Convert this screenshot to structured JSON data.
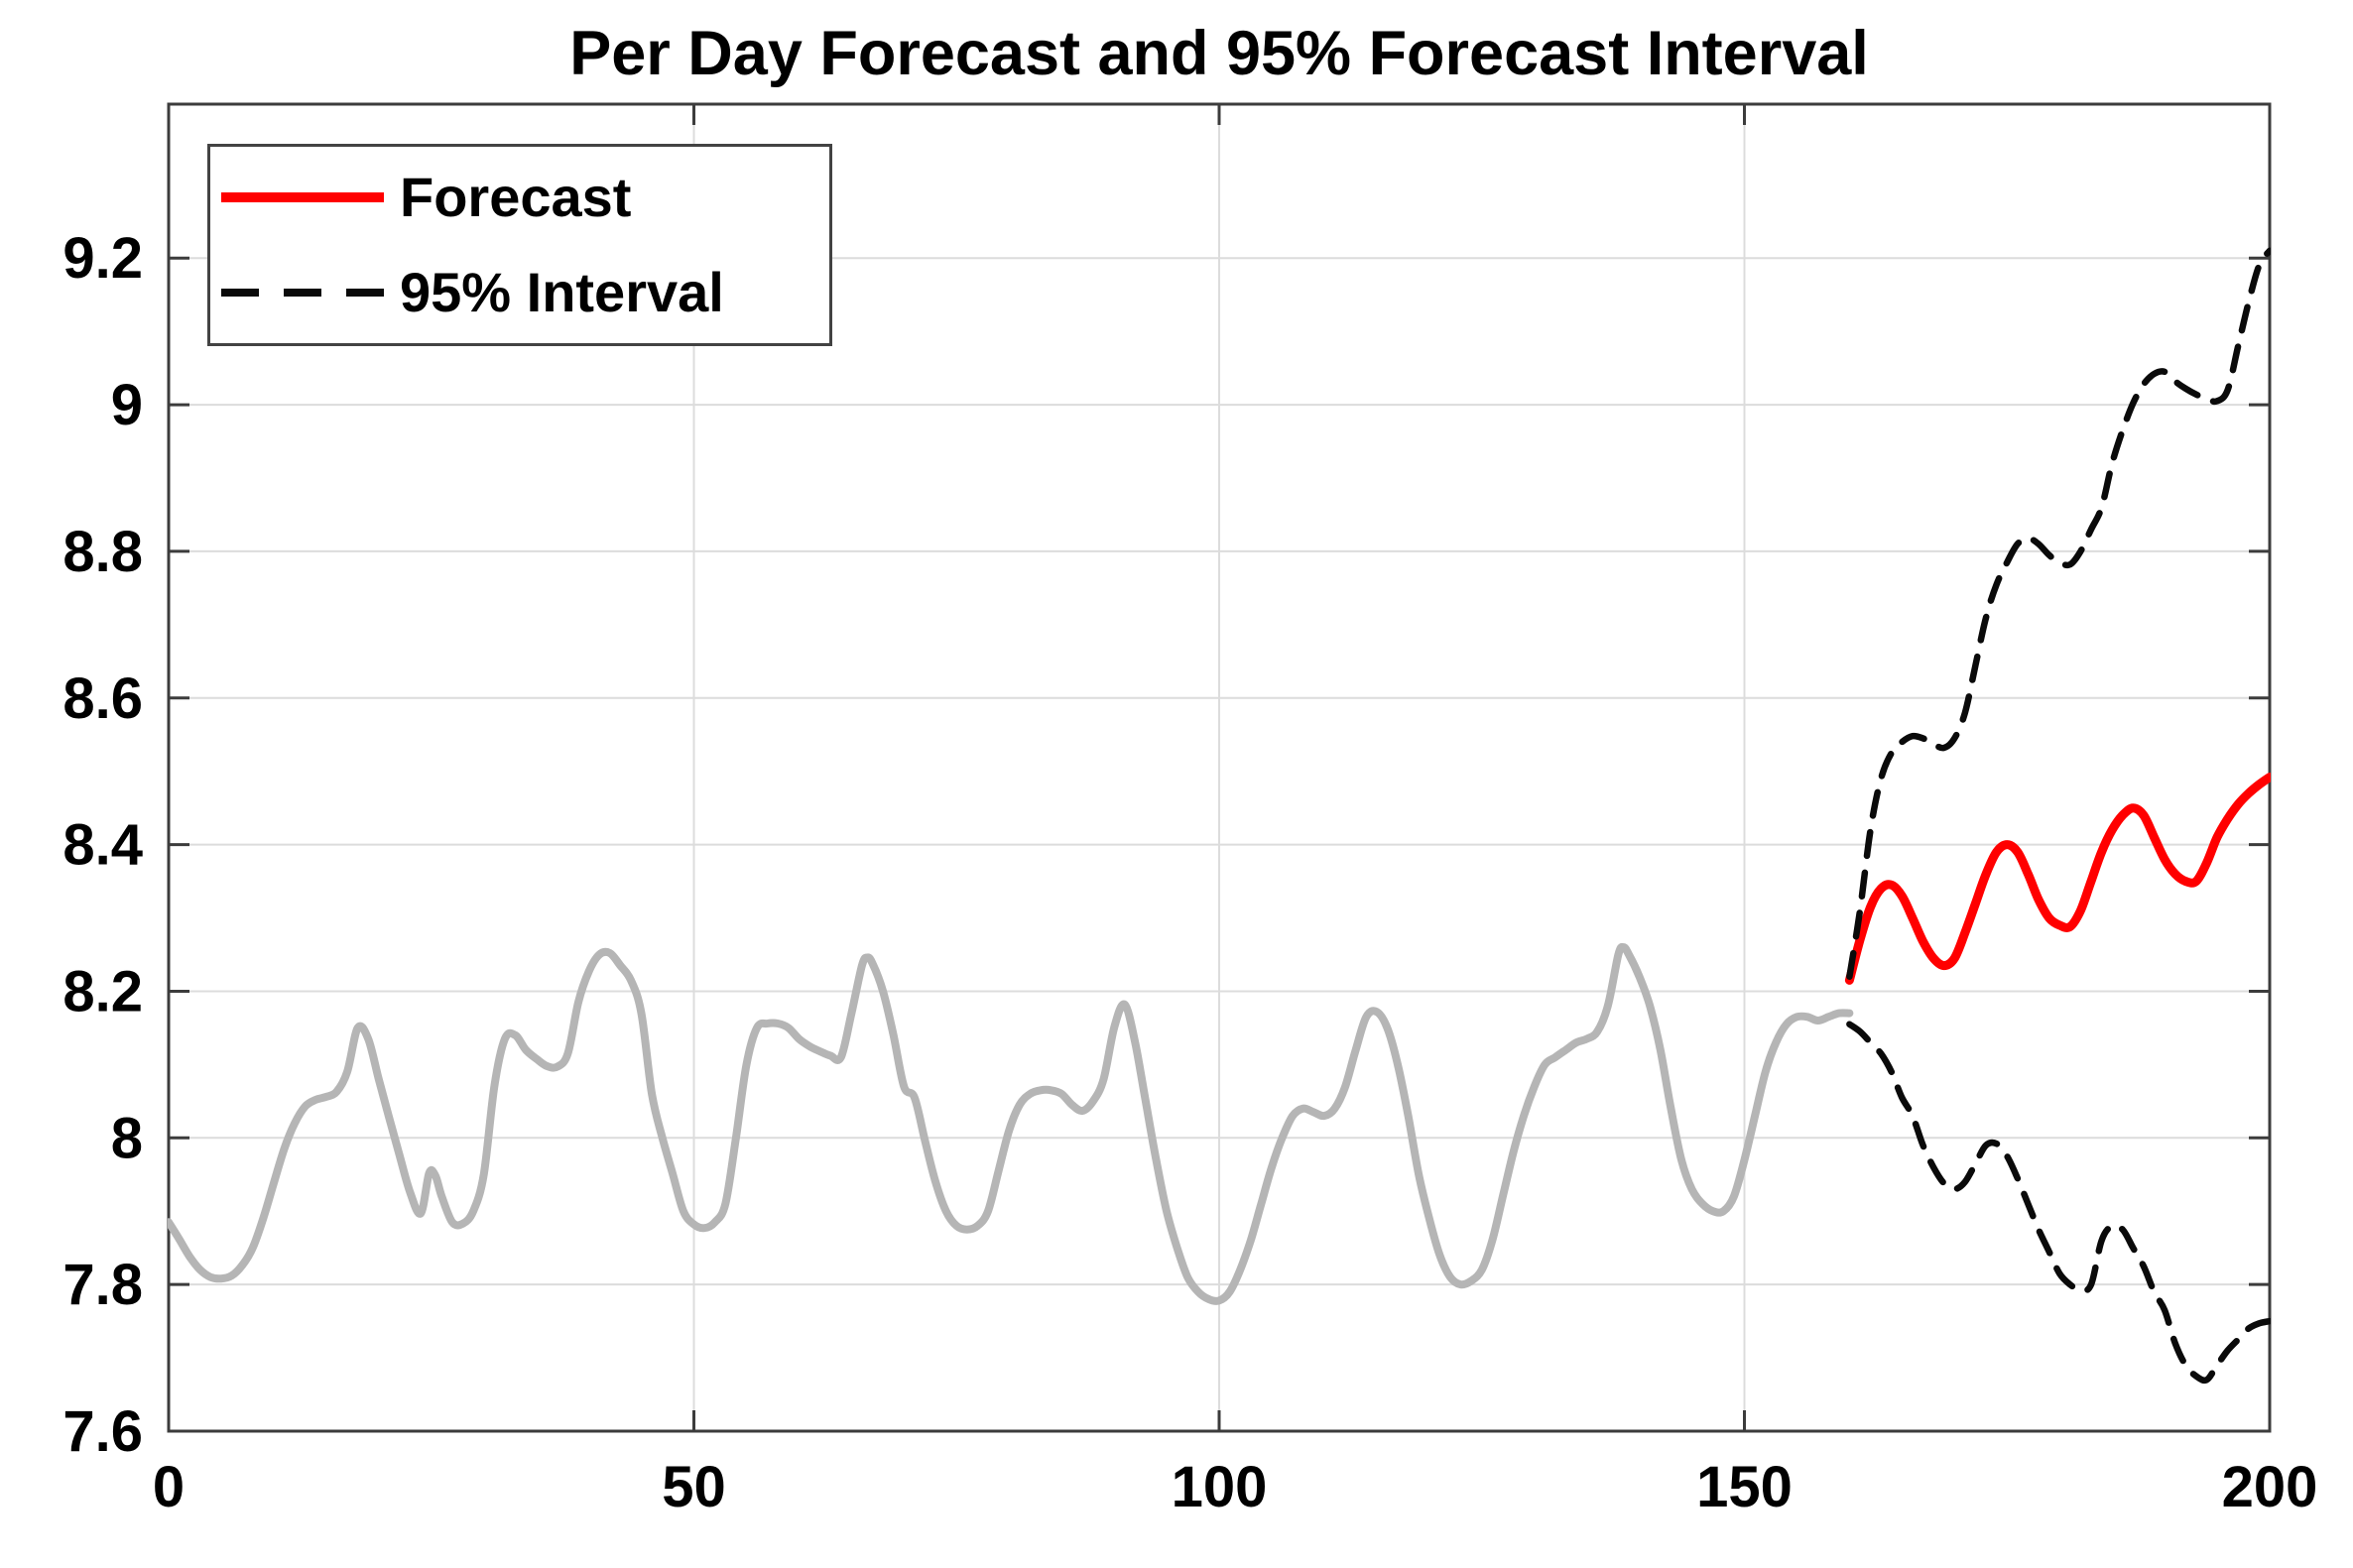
{
  "figure_title": "Per Day Forecast and 95% Forecast Interval",
  "legend": {
    "position": "top-left",
    "items": [
      {
        "label": "Forecast",
        "color": "#ff0000",
        "style": "solid"
      },
      {
        "label": "95% Interval",
        "color": "#0a0a0a",
        "style": "dashed"
      }
    ]
  },
  "axes": {
    "x_tick_labels": [
      "0",
      "50",
      "100",
      "150",
      "200"
    ],
    "y_tick_labels": [
      "7.6",
      "7.8",
      "8",
      "8.2",
      "8.4",
      "8.6",
      "8.8",
      "9",
      "9.2"
    ],
    "box_color": "#3c3c3c",
    "grid_color": "#dcdcdc",
    "label_color": "#000000"
  },
  "chart_data": {
    "type": "line",
    "title": "Per Day Forecast and 95% Forecast Interval",
    "xlabel": "",
    "ylabel": "",
    "xlim": [
      0,
      200
    ],
    "ylim": [
      7.6,
      9.41
    ],
    "x_ticks": [
      0,
      50,
      100,
      150,
      200
    ],
    "y_ticks": [
      7.6,
      7.8,
      8.0,
      8.2,
      8.4,
      8.6,
      8.8,
      9.0,
      9.2
    ],
    "grid": true,
    "legend_position": "top-left",
    "series": [
      {
        "name": "History",
        "color": "#b5b5b5",
        "style": "solid",
        "width": 8,
        "in_legend": false,
        "points": [
          [
            0,
            7.885
          ],
          [
            1,
            7.862
          ],
          [
            2,
            7.838
          ],
          [
            3,
            7.82
          ],
          [
            4,
            7.81
          ],
          [
            5,
            7.808
          ],
          [
            6,
            7.812
          ],
          [
            7,
            7.826
          ],
          [
            8,
            7.85
          ],
          [
            9,
            7.89
          ],
          [
            10,
            7.938
          ],
          [
            11,
            7.985
          ],
          [
            12,
            8.02
          ],
          [
            13,
            8.043
          ],
          [
            14,
            8.052
          ],
          [
            15,
            8.056
          ],
          [
            16,
            8.063
          ],
          [
            17,
            8.09
          ],
          [
            18,
            8.15
          ],
          [
            19,
            8.135
          ],
          [
            20,
            8.08
          ],
          [
            21,
            8.027
          ],
          [
            22,
            7.975
          ],
          [
            23,
            7.925
          ],
          [
            24,
            7.897
          ],
          [
            24.8,
            7.952
          ],
          [
            25.4,
            7.948
          ],
          [
            26,
            7.92
          ],
          [
            27,
            7.885
          ],
          [
            28,
            7.883
          ],
          [
            29,
            7.9
          ],
          [
            30,
            7.95
          ],
          [
            31,
            8.07
          ],
          [
            32,
            8.135
          ],
          [
            33,
            8.14
          ],
          [
            34,
            8.12
          ],
          [
            35,
            8.108
          ],
          [
            36,
            8.098
          ],
          [
            37,
            8.097
          ],
          [
            38,
            8.115
          ],
          [
            39,
            8.185
          ],
          [
            40,
            8.227
          ],
          [
            41,
            8.25
          ],
          [
            42,
            8.252
          ],
          [
            43,
            8.235
          ],
          [
            44,
            8.215
          ],
          [
            45,
            8.17
          ],
          [
            46,
            8.06
          ],
          [
            47,
            8.0
          ],
          [
            48,
            7.95
          ],
          [
            49,
            7.9
          ],
          [
            50,
            7.882
          ],
          [
            51,
            7.877
          ],
          [
            52,
            7.885
          ],
          [
            53,
            7.91
          ],
          [
            54,
            8.0
          ],
          [
            55,
            8.1
          ],
          [
            56,
            8.15
          ],
          [
            57,
            8.156
          ],
          [
            58,
            8.156
          ],
          [
            59,
            8.15
          ],
          [
            60,
            8.135
          ],
          [
            61,
            8.125
          ],
          [
            62,
            8.118
          ],
          [
            63,
            8.112
          ],
          [
            64,
            8.11
          ],
          [
            65,
            8.17
          ],
          [
            66,
            8.235
          ],
          [
            66.5,
            8.246
          ],
          [
            67,
            8.238
          ],
          [
            68,
            8.2
          ],
          [
            69,
            8.14
          ],
          [
            70,
            8.07
          ],
          [
            71,
            8.055
          ],
          [
            72,
            7.996
          ],
          [
            73,
            7.94
          ],
          [
            74,
            7.9
          ],
          [
            75,
            7.88
          ],
          [
            76,
            7.875
          ],
          [
            77,
            7.88
          ],
          [
            78,
            7.9
          ],
          [
            79,
            7.955
          ],
          [
            80,
            8.01
          ],
          [
            81,
            8.045
          ],
          [
            82,
            8.06
          ],
          [
            83,
            8.065
          ],
          [
            84,
            8.065
          ],
          [
            85,
            8.06
          ],
          [
            86,
            8.045
          ],
          [
            87,
            8.037
          ],
          [
            88,
            8.05
          ],
          [
            89,
            8.08
          ],
          [
            90,
            8.15
          ],
          [
            91,
            8.182
          ],
          [
            92,
            8.13
          ],
          [
            93,
            8.05
          ],
          [
            94,
            7.97
          ],
          [
            95,
            7.9
          ],
          [
            96,
            7.85
          ],
          [
            97,
            7.81
          ],
          [
            98,
            7.79
          ],
          [
            99,
            7.78
          ],
          [
            100,
            7.778
          ],
          [
            101,
            7.79
          ],
          [
            102,
            7.82
          ],
          [
            103,
            7.86
          ],
          [
            104,
            7.91
          ],
          [
            105,
            7.96
          ],
          [
            106,
            8.0
          ],
          [
            107,
            8.03
          ],
          [
            108,
            8.04
          ],
          [
            109,
            8.035
          ],
          [
            110,
            8.03
          ],
          [
            111,
            8.04
          ],
          [
            112,
            8.07
          ],
          [
            113,
            8.12
          ],
          [
            114,
            8.165
          ],
          [
            115,
            8.172
          ],
          [
            116,
            8.15
          ],
          [
            117,
            8.1
          ],
          [
            118,
            8.03
          ],
          [
            119,
            7.95
          ],
          [
            120,
            7.89
          ],
          [
            121,
            7.84
          ],
          [
            122,
            7.81
          ],
          [
            123,
            7.8
          ],
          [
            124,
            7.805
          ],
          [
            125,
            7.82
          ],
          [
            126,
            7.86
          ],
          [
            127,
            7.92
          ],
          [
            128,
            7.98
          ],
          [
            129,
            8.03
          ],
          [
            130,
            8.07
          ],
          [
            131,
            8.1
          ],
          [
            132,
            8.11
          ],
          [
            133,
            8.12
          ],
          [
            134,
            8.13
          ],
          [
            135,
            8.135
          ],
          [
            136,
            8.145
          ],
          [
            137,
            8.18
          ],
          [
            138,
            8.25
          ],
          [
            138.5,
            8.26
          ],
          [
            139,
            8.25
          ],
          [
            140,
            8.22
          ],
          [
            141,
            8.18
          ],
          [
            142,
            8.12
          ],
          [
            143,
            8.04
          ],
          [
            144,
            7.97
          ],
          [
            145,
            7.93
          ],
          [
            146,
            7.91
          ],
          [
            147,
            7.9
          ],
          [
            148,
            7.9
          ],
          [
            149,
            7.92
          ],
          [
            150,
            7.97
          ],
          [
            151,
            8.03
          ],
          [
            152,
            8.09
          ],
          [
            153,
            8.13
          ],
          [
            154,
            8.155
          ],
          [
            155,
            8.165
          ],
          [
            156,
            8.165
          ],
          [
            157,
            8.16
          ],
          [
            158,
            8.165
          ],
          [
            159,
            8.17
          ],
          [
            160,
            8.17
          ]
        ]
      },
      {
        "name": "Forecast",
        "color": "#ff0000",
        "style": "solid",
        "width": 9,
        "in_legend": true,
        "points": [
          [
            160,
            8.215
          ],
          [
            161,
            8.27
          ],
          [
            162,
            8.315
          ],
          [
            163,
            8.34
          ],
          [
            164,
            8.345
          ],
          [
            165,
            8.33
          ],
          [
            166,
            8.3
          ],
          [
            167,
            8.268
          ],
          [
            168,
            8.245
          ],
          [
            169,
            8.235
          ],
          [
            170,
            8.245
          ],
          [
            171,
            8.28
          ],
          [
            172,
            8.32
          ],
          [
            173,
            8.36
          ],
          [
            174,
            8.39
          ],
          [
            175,
            8.4
          ],
          [
            176,
            8.39
          ],
          [
            177,
            8.36
          ],
          [
            178,
            8.325
          ],
          [
            179,
            8.3
          ],
          [
            180,
            8.29
          ],
          [
            181,
            8.288
          ],
          [
            182,
            8.31
          ],
          [
            183,
            8.35
          ],
          [
            184,
            8.39
          ],
          [
            185,
            8.42
          ],
          [
            186,
            8.44
          ],
          [
            187,
            8.45
          ],
          [
            188,
            8.44
          ],
          [
            189,
            8.41
          ],
          [
            190,
            8.38
          ],
          [
            191,
            8.36
          ],
          [
            192,
            8.35
          ],
          [
            193,
            8.35
          ],
          [
            194,
            8.375
          ],
          [
            195,
            8.41
          ],
          [
            196,
            8.435
          ],
          [
            197,
            8.455
          ],
          [
            198,
            8.47
          ],
          [
            199,
            8.482
          ],
          [
            200,
            8.492
          ]
        ]
      },
      {
        "name": "95% Interval upper",
        "color": "#0a0a0a",
        "style": "dashed",
        "width": 6.5,
        "in_legend": true,
        "points": [
          [
            160,
            8.22
          ],
          [
            161,
            8.31
          ],
          [
            162,
            8.42
          ],
          [
            163,
            8.49
          ],
          [
            164,
            8.525
          ],
          [
            165,
            8.54
          ],
          [
            166,
            8.548
          ],
          [
            167,
            8.545
          ],
          [
            168,
            8.537
          ],
          [
            169,
            8.532
          ],
          [
            170,
            8.545
          ],
          [
            171,
            8.58
          ],
          [
            172,
            8.645
          ],
          [
            173,
            8.71
          ],
          [
            174,
            8.755
          ],
          [
            175,
            8.785
          ],
          [
            176,
            8.81
          ],
          [
            177,
            8.818
          ],
          [
            178,
            8.81
          ],
          [
            179,
            8.795
          ],
          [
            180,
            8.785
          ],
          [
            181,
            8.782
          ],
          [
            182,
            8.8
          ],
          [
            183,
            8.83
          ],
          [
            184,
            8.86
          ],
          [
            185,
            8.92
          ],
          [
            186,
            8.965
          ],
          [
            187,
            9.002
          ],
          [
            188,
            9.028
          ],
          [
            189,
            9.042
          ],
          [
            190,
            9.045
          ],
          [
            191,
            9.032
          ],
          [
            192,
            9.022
          ],
          [
            193,
            9.014
          ],
          [
            194,
            9.008
          ],
          [
            195,
            9.005
          ],
          [
            196,
            9.02
          ],
          [
            197,
            9.08
          ],
          [
            198,
            9.14
          ],
          [
            199,
            9.19
          ],
          [
            200,
            9.21
          ]
        ]
      },
      {
        "name": "95% Interval lower",
        "color": "#0a0a0a",
        "style": "dashed",
        "width": 6.5,
        "in_legend": true,
        "points": [
          [
            160,
            8.155
          ],
          [
            161,
            8.145
          ],
          [
            162,
            8.13
          ],
          [
            163,
            8.115
          ],
          [
            164,
            8.09
          ],
          [
            165,
            8.055
          ],
          [
            166,
            8.03
          ],
          [
            167,
            7.99
          ],
          [
            168,
            7.96
          ],
          [
            169,
            7.938
          ],
          [
            170,
            7.93
          ],
          [
            171,
            7.94
          ],
          [
            172,
            7.965
          ],
          [
            173,
            7.99
          ],
          [
            174,
            7.992
          ],
          [
            175,
            7.975
          ],
          [
            176,
            7.945
          ],
          [
            177,
            7.91
          ],
          [
            178,
            7.875
          ],
          [
            179,
            7.845
          ],
          [
            180,
            7.815
          ],
          [
            181,
            7.8
          ],
          [
            182,
            7.792
          ],
          [
            183,
            7.8
          ],
          [
            184,
            7.86
          ],
          [
            185,
            7.88
          ],
          [
            186,
            7.875
          ],
          [
            187,
            7.85
          ],
          [
            188,
            7.825
          ],
          [
            189,
            7.79
          ],
          [
            190,
            7.765
          ],
          [
            191,
            7.72
          ],
          [
            192,
            7.69
          ],
          [
            193,
            7.675
          ],
          [
            194,
            7.67
          ],
          [
            195,
            7.69
          ],
          [
            196,
            7.71
          ],
          [
            197,
            7.725
          ],
          [
            198,
            7.74
          ],
          [
            199,
            7.747
          ],
          [
            200,
            7.75
          ]
        ]
      }
    ]
  }
}
